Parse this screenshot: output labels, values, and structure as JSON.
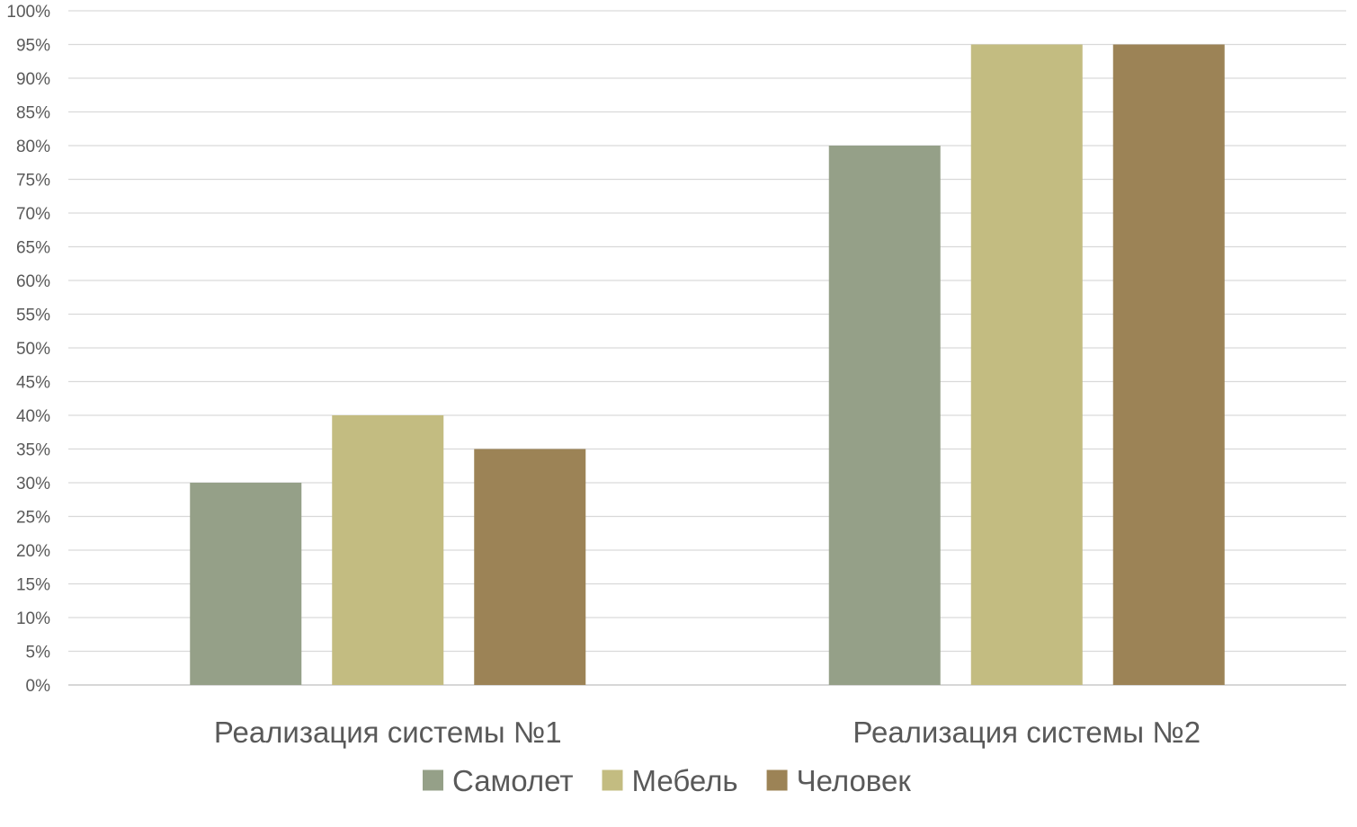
{
  "chart_data": {
    "type": "bar",
    "categories": [
      "Реализация системы №1",
      "Реализация системы №2"
    ],
    "series": [
      {
        "name": "Самолет",
        "values": [
          30,
          80
        ],
        "color": "#95a088"
      },
      {
        "name": "Мебель",
        "values": [
          40,
          95
        ],
        "color": "#c3bc81"
      },
      {
        "name": "Человек",
        "values": [
          35,
          95
        ],
        "color": "#9c8356"
      }
    ],
    "ylim": [
      0,
      100
    ],
    "ytick_step": 5,
    "ytick_format": "percent",
    "grid": true,
    "legend_position": "bottom",
    "title": "",
    "xlabel": "",
    "ylabel": ""
  }
}
